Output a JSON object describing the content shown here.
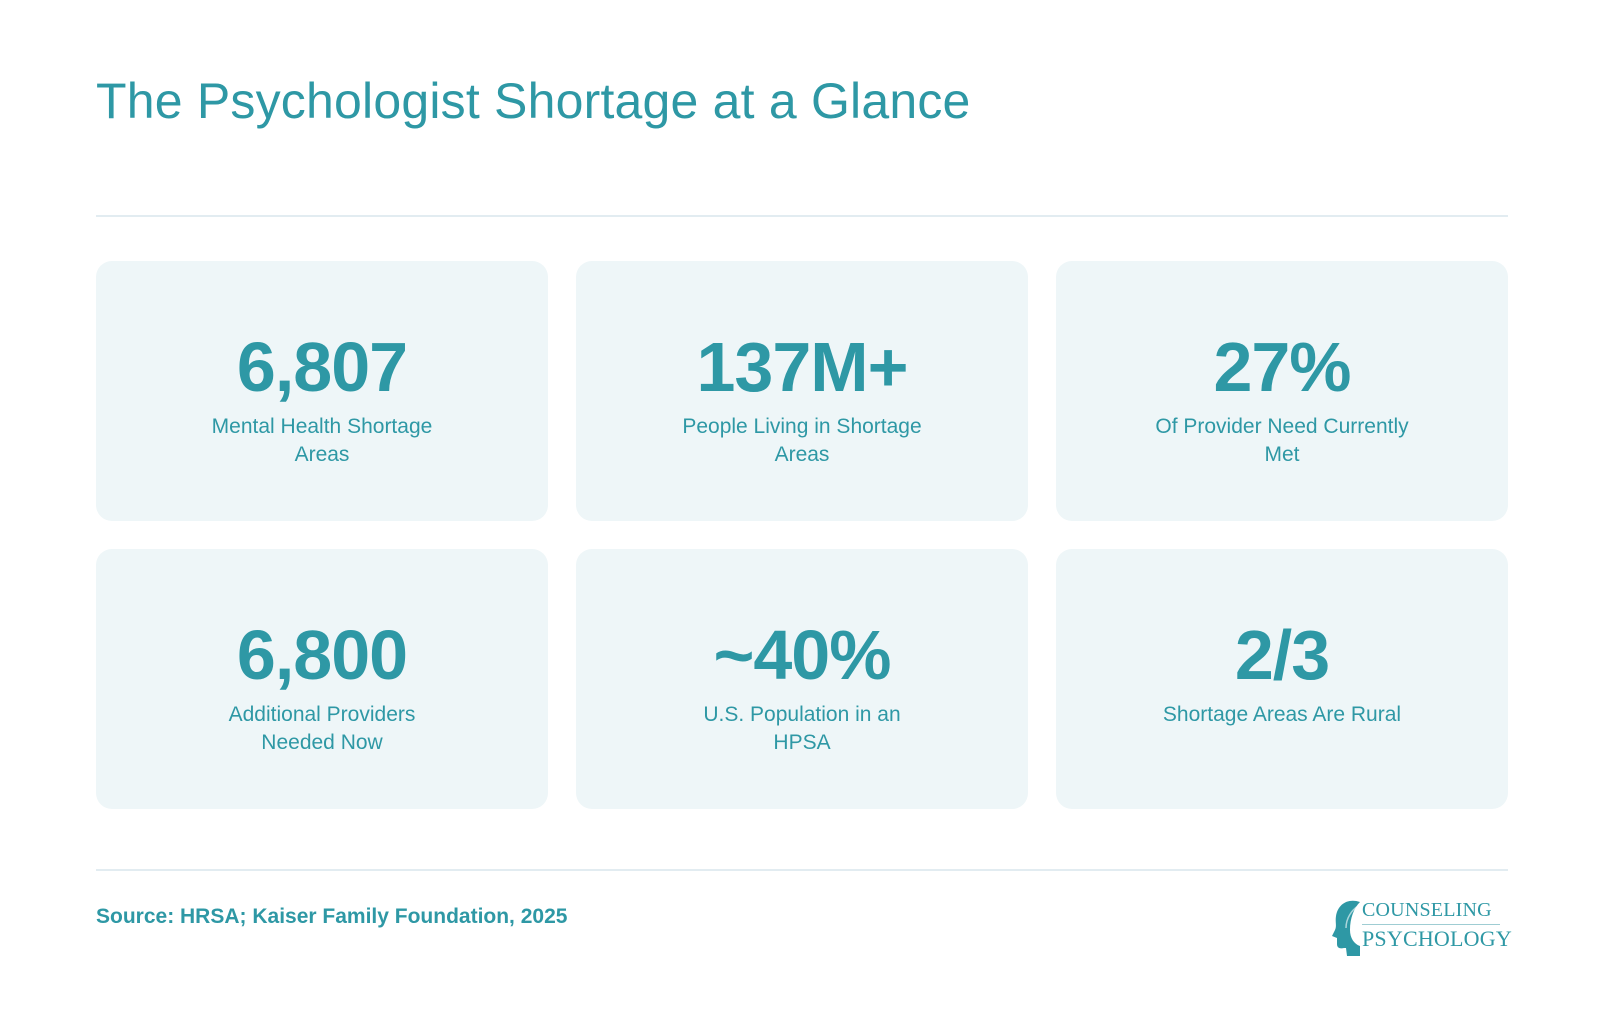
{
  "title": "The Psychologist Shortage at a Glance",
  "stats": [
    {
      "value": "6,807",
      "label": "Mental Health Shortage Areas"
    },
    {
      "value": "137M+",
      "label": "People Living in Shortage Areas"
    },
    {
      "value": "27%",
      "label": "Of Provider Need Currently Met"
    },
    {
      "value": "6,800",
      "label": "Additional Providers Needed Now"
    },
    {
      "value": "~40%",
      "label": "U.S. Population in an HPSA"
    },
    {
      "value": "2/3",
      "label": "Shortage Areas Are Rural"
    }
  ],
  "source": "Source: HRSA; Kaiser Family Foundation, 2025",
  "logo": {
    "line1": "COUNSELING",
    "line2": "PSYCHOLOGY"
  },
  "colors": {
    "accent": "#2e98a5",
    "card_bg": "#eef6f8",
    "rule": "#e2ecf1"
  }
}
